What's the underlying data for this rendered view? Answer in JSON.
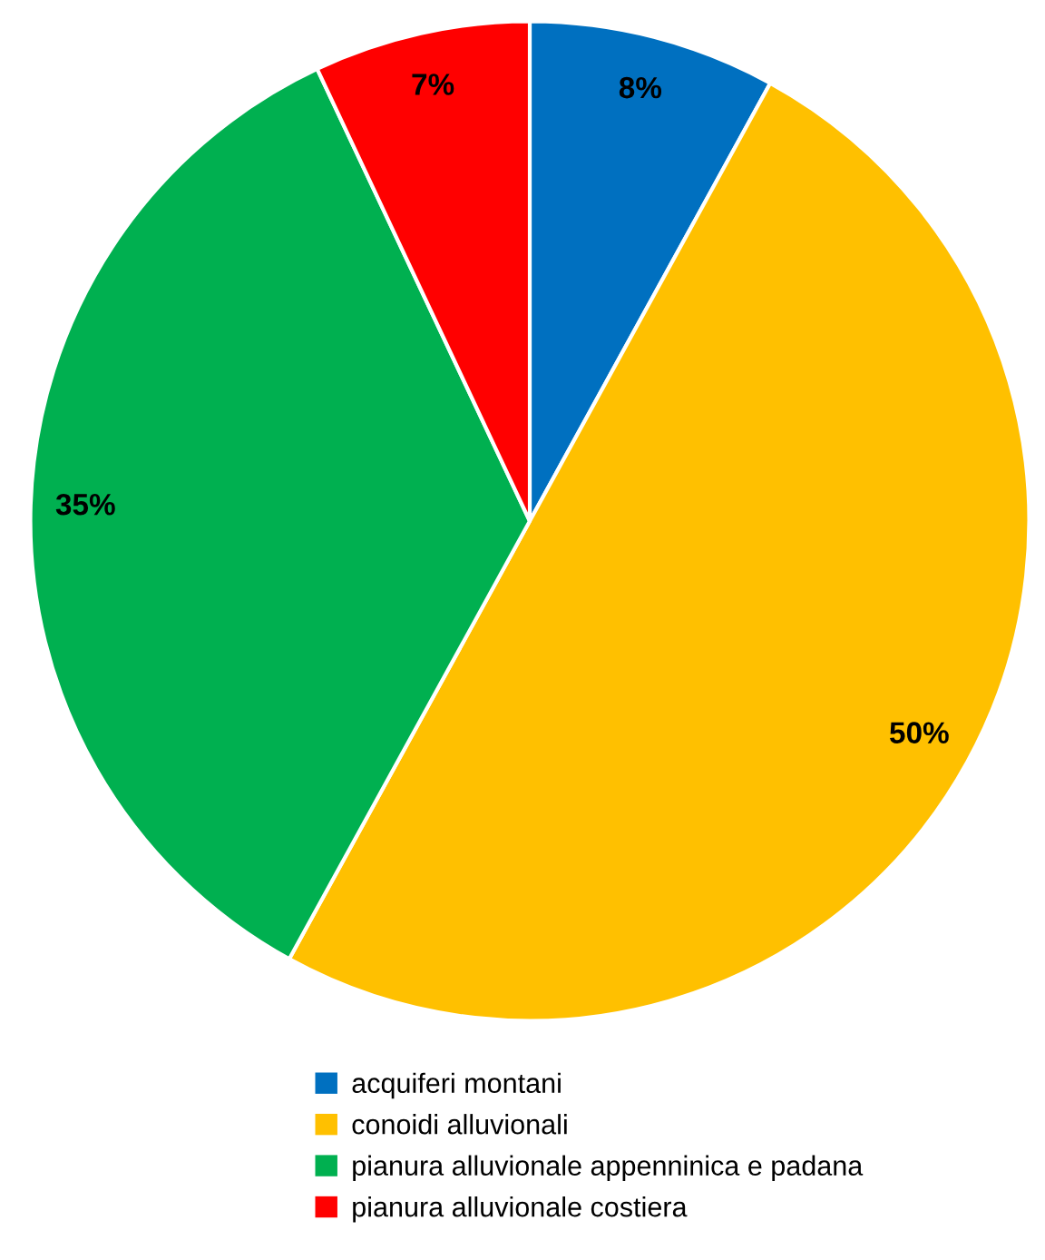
{
  "chart_data": {
    "type": "pie",
    "categories": [
      "acquiferi montani",
      "conoidi alluvionali",
      "pianura alluvionale appenninica e padana",
      "pianura alluvionale costiera"
    ],
    "values": [
      8,
      50,
      35,
      7
    ],
    "colors": [
      "#0070c0",
      "#ffc000",
      "#00b050",
      "#ff0000"
    ],
    "value_labels": [
      "8%",
      "50%",
      "35%",
      "7%"
    ],
    "legend": "bottom"
  }
}
